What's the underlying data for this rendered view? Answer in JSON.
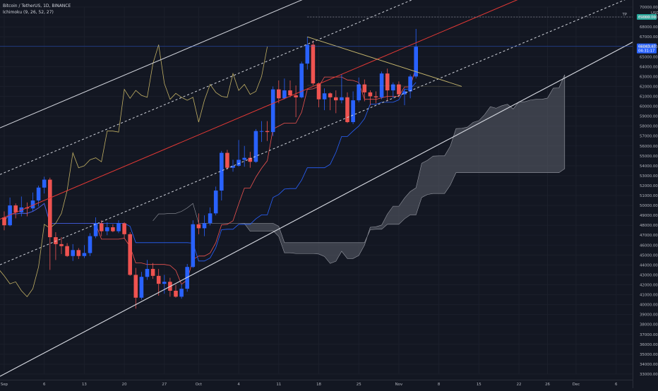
{
  "header": {
    "symbol_line": "Bitcoin / TetherUS, 1D, BINANCE",
    "indicator_line": "Ichimoku (9, 26, 52, 27)"
  },
  "price_axis": {
    "currency": "USDT",
    "labels": [
      "70000.00",
      "69000.00",
      "68000.00",
      "67000.00",
      "66000.00",
      "65000.00",
      "64000.00",
      "63000.00",
      "62000.00",
      "61000.00",
      "60000.00",
      "59000.00",
      "58000.00",
      "57000.00",
      "56000.00",
      "55000.00",
      "54000.00",
      "53000.00",
      "52000.00",
      "51000.00",
      "50000.00",
      "49000.00",
      "48000.00",
      "47000.00",
      "46000.00",
      "45000.00",
      "44000.00",
      "43000.00",
      "42000.00",
      "41000.00",
      "40000.00",
      "39000.00",
      "38000.00",
      "37000.00",
      "36000.00",
      "35000.00",
      "34000.00",
      "33000.00"
    ],
    "tp_label": "TP",
    "tp_value": "69000.00",
    "price_box_top": "66043.47",
    "price_box_bottom": "04:31:17"
  },
  "time_axis": {
    "labels": [
      "Sep",
      "6",
      "13",
      "20",
      "27",
      "Oct",
      "4",
      "11",
      "18",
      "25",
      "Nov",
      "8",
      "15",
      "22",
      "26",
      "Dec",
      "6"
    ]
  },
  "colors": {
    "background": "#131722",
    "up": "#2962ff",
    "down": "#ef5350",
    "cloud": "#5d606b",
    "chikou": "#d4c06a",
    "tenkan": "#ef5350",
    "kijun": "#2962ff",
    "channel": "#d1d4dc",
    "midline": "#e53935",
    "tp_line": "#787b86",
    "triangle": "#c8b86e"
  },
  "chart_data": {
    "type": "candlestick",
    "title": "Bitcoin / TetherUS, 1D, BINANCE",
    "ylim": [
      32500,
      70500
    ],
    "x_labels": [
      "Sep",
      "6",
      "13",
      "20",
      "27",
      "Oct",
      "4",
      "11",
      "18",
      "25",
      "Nov",
      "8",
      "15",
      "22",
      "26",
      "Dec",
      "6"
    ],
    "candles": [
      {
        "o": 48800,
        "h": 49400,
        "l": 47500,
        "c": 48000
      },
      {
        "o": 48000,
        "h": 50800,
        "l": 47900,
        "c": 50000
      },
      {
        "o": 50000,
        "h": 50200,
        "l": 48700,
        "c": 49300
      },
      {
        "o": 49300,
        "h": 50900,
        "l": 48900,
        "c": 49800
      },
      {
        "o": 49800,
        "h": 50300,
        "l": 48900,
        "c": 49700
      },
      {
        "o": 49700,
        "h": 51300,
        "l": 49400,
        "c": 50500
      },
      {
        "o": 50500,
        "h": 52000,
        "l": 49900,
        "c": 51800
      },
      {
        "o": 51800,
        "h": 52900,
        "l": 51200,
        "c": 52600
      },
      {
        "o": 52600,
        "h": 52800,
        "l": 43500,
        "c": 46800
      },
      {
        "o": 46800,
        "h": 47300,
        "l": 44500,
        "c": 46100
      },
      {
        "o": 46100,
        "h": 46800,
        "l": 45100,
        "c": 45900
      },
      {
        "o": 45900,
        "h": 46200,
        "l": 44800,
        "c": 44900
      },
      {
        "o": 44900,
        "h": 46100,
        "l": 44400,
        "c": 45500
      },
      {
        "o": 45500,
        "h": 45700,
        "l": 44600,
        "c": 44900
      },
      {
        "o": 44900,
        "h": 46000,
        "l": 44700,
        "c": 45200
      },
      {
        "o": 45200,
        "h": 47200,
        "l": 44900,
        "c": 46900
      },
      {
        "o": 46900,
        "h": 48800,
        "l": 46700,
        "c": 48200
      },
      {
        "o": 48200,
        "h": 48500,
        "l": 46900,
        "c": 47400
      },
      {
        "o": 47400,
        "h": 48300,
        "l": 47000,
        "c": 47800
      },
      {
        "o": 47800,
        "h": 48100,
        "l": 47300,
        "c": 47400
      },
      {
        "o": 47400,
        "h": 48500,
        "l": 47200,
        "c": 48200
      },
      {
        "o": 48200,
        "h": 48300,
        "l": 46700,
        "c": 47100
      },
      {
        "o": 47100,
        "h": 47300,
        "l": 42900,
        "c": 43000
      },
      {
        "o": 43000,
        "h": 43700,
        "l": 39600,
        "c": 40700
      },
      {
        "o": 40700,
        "h": 43300,
        "l": 40500,
        "c": 42800
      },
      {
        "o": 42800,
        "h": 44500,
        "l": 42500,
        "c": 43600
      },
      {
        "o": 43600,
        "h": 44200,
        "l": 42600,
        "c": 42900
      },
      {
        "o": 42900,
        "h": 43600,
        "l": 40900,
        "c": 42100
      },
      {
        "o": 42100,
        "h": 43000,
        "l": 41100,
        "c": 42300
      },
      {
        "o": 42300,
        "h": 42700,
        "l": 40800,
        "c": 41400
      },
      {
        "o": 41400,
        "h": 42000,
        "l": 40700,
        "c": 40800
      },
      {
        "o": 40800,
        "h": 42100,
        "l": 40600,
        "c": 41600
      },
      {
        "o": 41600,
        "h": 44100,
        "l": 41300,
        "c": 43800
      },
      {
        "o": 43800,
        "h": 48500,
        "l": 43700,
        "c": 48100
      },
      {
        "o": 48100,
        "h": 49200,
        "l": 47100,
        "c": 47700
      },
      {
        "o": 47700,
        "h": 49000,
        "l": 46900,
        "c": 48200
      },
      {
        "o": 48200,
        "h": 49800,
        "l": 48000,
        "c": 49200
      },
      {
        "o": 49200,
        "h": 51900,
        "l": 49000,
        "c": 51500
      },
      {
        "o": 51500,
        "h": 55500,
        "l": 50500,
        "c": 55300
      },
      {
        "o": 55300,
        "h": 55600,
        "l": 53600,
        "c": 53800
      },
      {
        "o": 53800,
        "h": 54600,
        "l": 53400,
        "c": 54000
      },
      {
        "o": 54000,
        "h": 56600,
        "l": 53900,
        "c": 54600
      },
      {
        "o": 54600,
        "h": 56000,
        "l": 53900,
        "c": 54800
      },
      {
        "o": 54800,
        "h": 55400,
        "l": 53800,
        "c": 54400
      },
      {
        "o": 54400,
        "h": 57700,
        "l": 54300,
        "c": 57500
      },
      {
        "o": 57500,
        "h": 58500,
        "l": 56400,
        "c": 57500
      },
      {
        "o": 57500,
        "h": 58500,
        "l": 56500,
        "c": 57400
      },
      {
        "o": 57400,
        "h": 62000,
        "l": 57000,
        "c": 61700
      },
      {
        "o": 61700,
        "h": 62600,
        "l": 60300,
        "c": 60800
      },
      {
        "o": 60800,
        "h": 62800,
        "l": 60700,
        "c": 61600
      },
      {
        "o": 61600,
        "h": 62600,
        "l": 60900,
        "c": 61100
      },
      {
        "o": 61100,
        "h": 62100,
        "l": 58900,
        "c": 60900
      },
      {
        "o": 60900,
        "h": 64500,
        "l": 60800,
        "c": 64300
      },
      {
        "o": 64300,
        "h": 67000,
        "l": 63700,
        "c": 66200
      },
      {
        "o": 66200,
        "h": 66600,
        "l": 62100,
        "c": 62300
      },
      {
        "o": 62300,
        "h": 62400,
        "l": 59900,
        "c": 60700
      },
      {
        "o": 60700,
        "h": 61800,
        "l": 59600,
        "c": 61300
      },
      {
        "o": 61300,
        "h": 61400,
        "l": 59600,
        "c": 60900
      },
      {
        "o": 60900,
        "h": 61600,
        "l": 59300,
        "c": 60600
      },
      {
        "o": 60600,
        "h": 63200,
        "l": 60300,
        "c": 60900
      },
      {
        "o": 60900,
        "h": 61400,
        "l": 58300,
        "c": 58400
      },
      {
        "o": 58400,
        "h": 61500,
        "l": 58200,
        "c": 60600
      },
      {
        "o": 60600,
        "h": 62900,
        "l": 60400,
        "c": 62200
      },
      {
        "o": 62200,
        "h": 62700,
        "l": 60500,
        "c": 61400
      },
      {
        "o": 61400,
        "h": 61600,
        "l": 60100,
        "c": 61000
      },
      {
        "o": 61000,
        "h": 61500,
        "l": 60300,
        "c": 60900
      },
      {
        "o": 60900,
        "h": 63500,
        "l": 60700,
        "c": 63300
      },
      {
        "o": 63300,
        "h": 63800,
        "l": 60500,
        "c": 61600
      },
      {
        "o": 61600,
        "h": 62400,
        "l": 60800,
        "c": 62200
      },
      {
        "o": 62200,
        "h": 62500,
        "l": 60900,
        "c": 61200
      },
      {
        "o": 61200,
        "h": 61800,
        "l": 60100,
        "c": 61500
      },
      {
        "o": 61500,
        "h": 63200,
        "l": 60800,
        "c": 63000
      },
      {
        "o": 63000,
        "h": 67800,
        "l": 62800,
        "c": 66000
      }
    ],
    "tp_price": 69000,
    "last_price": 66043.47
  }
}
